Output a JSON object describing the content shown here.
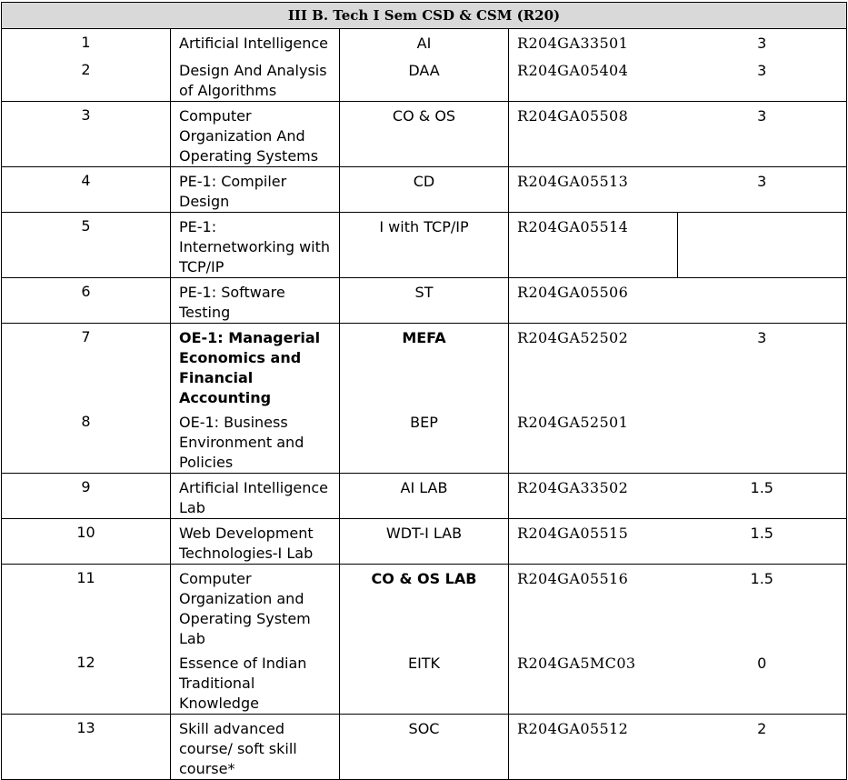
{
  "header": "III B. Tech I Sem CSD & CSM (R20)",
  "rows": [
    {
      "no": "1",
      "subject": "Artificial Intelligence",
      "abbr": "AI",
      "code": "R204GA33501",
      "credits": "3"
    },
    {
      "no": "2",
      "subject": "Design And Analysis of Algorithms",
      "abbr": "DAA",
      "code": "R204GA05404",
      "credits": "3"
    },
    {
      "no": "3",
      "subject": "Computer Organization And Operating Systems",
      "abbr": "CO & OS",
      "code": "R204GA05508",
      "credits": "3"
    },
    {
      "no": "4",
      "subject": "PE-1: Compiler Design",
      "abbr": "CD",
      "code": "R204GA05513",
      "credits": "3"
    },
    {
      "no": "5",
      "subject": "PE-1:  Internetworking with TCP/IP",
      "abbr": "I with TCP/IP",
      "code": "R204GA05514",
      "credits": ""
    },
    {
      "no": "6",
      "subject": "PE-1: Software Testing",
      "abbr": "ST",
      "code": "R204GA05506",
      "credits": ""
    },
    {
      "no": "7",
      "subject": "OE-1: Managerial Economics and Financial Accounting",
      "abbr": "MEFA",
      "code": "R204GA52502",
      "credits": "3"
    },
    {
      "no": "8",
      "subject": "OE-1: Business Environment and Policies",
      "abbr": "BEP",
      "code": "R204GA52501",
      "credits": ""
    },
    {
      "no": "9",
      "subject": "Artificial Intelligence Lab",
      "abbr": "AI LAB",
      "code": "R204GA33502",
      "credits": "1.5"
    },
    {
      "no": "10",
      "subject": "Web Development Technologies-I  Lab",
      "abbr": "WDT-I LAB",
      "code": "R204GA05515",
      "credits": "1.5"
    },
    {
      "no": "11",
      "subject": "Computer Organization and Operating System Lab",
      "abbr": "CO & OS LAB",
      "code": "R204GA05516",
      "credits": "1.5"
    },
    {
      "no": "12",
      "subject": "Essence of Indian Traditional Knowledge",
      "abbr": "EITK",
      "code": "R204GA5MC03",
      "credits": "0"
    },
    {
      "no": "13",
      "subject": "Skill advanced course/ soft skill course*",
      "abbr": "SOC",
      "code": "R204GA05512",
      "credits": "2"
    }
  ]
}
